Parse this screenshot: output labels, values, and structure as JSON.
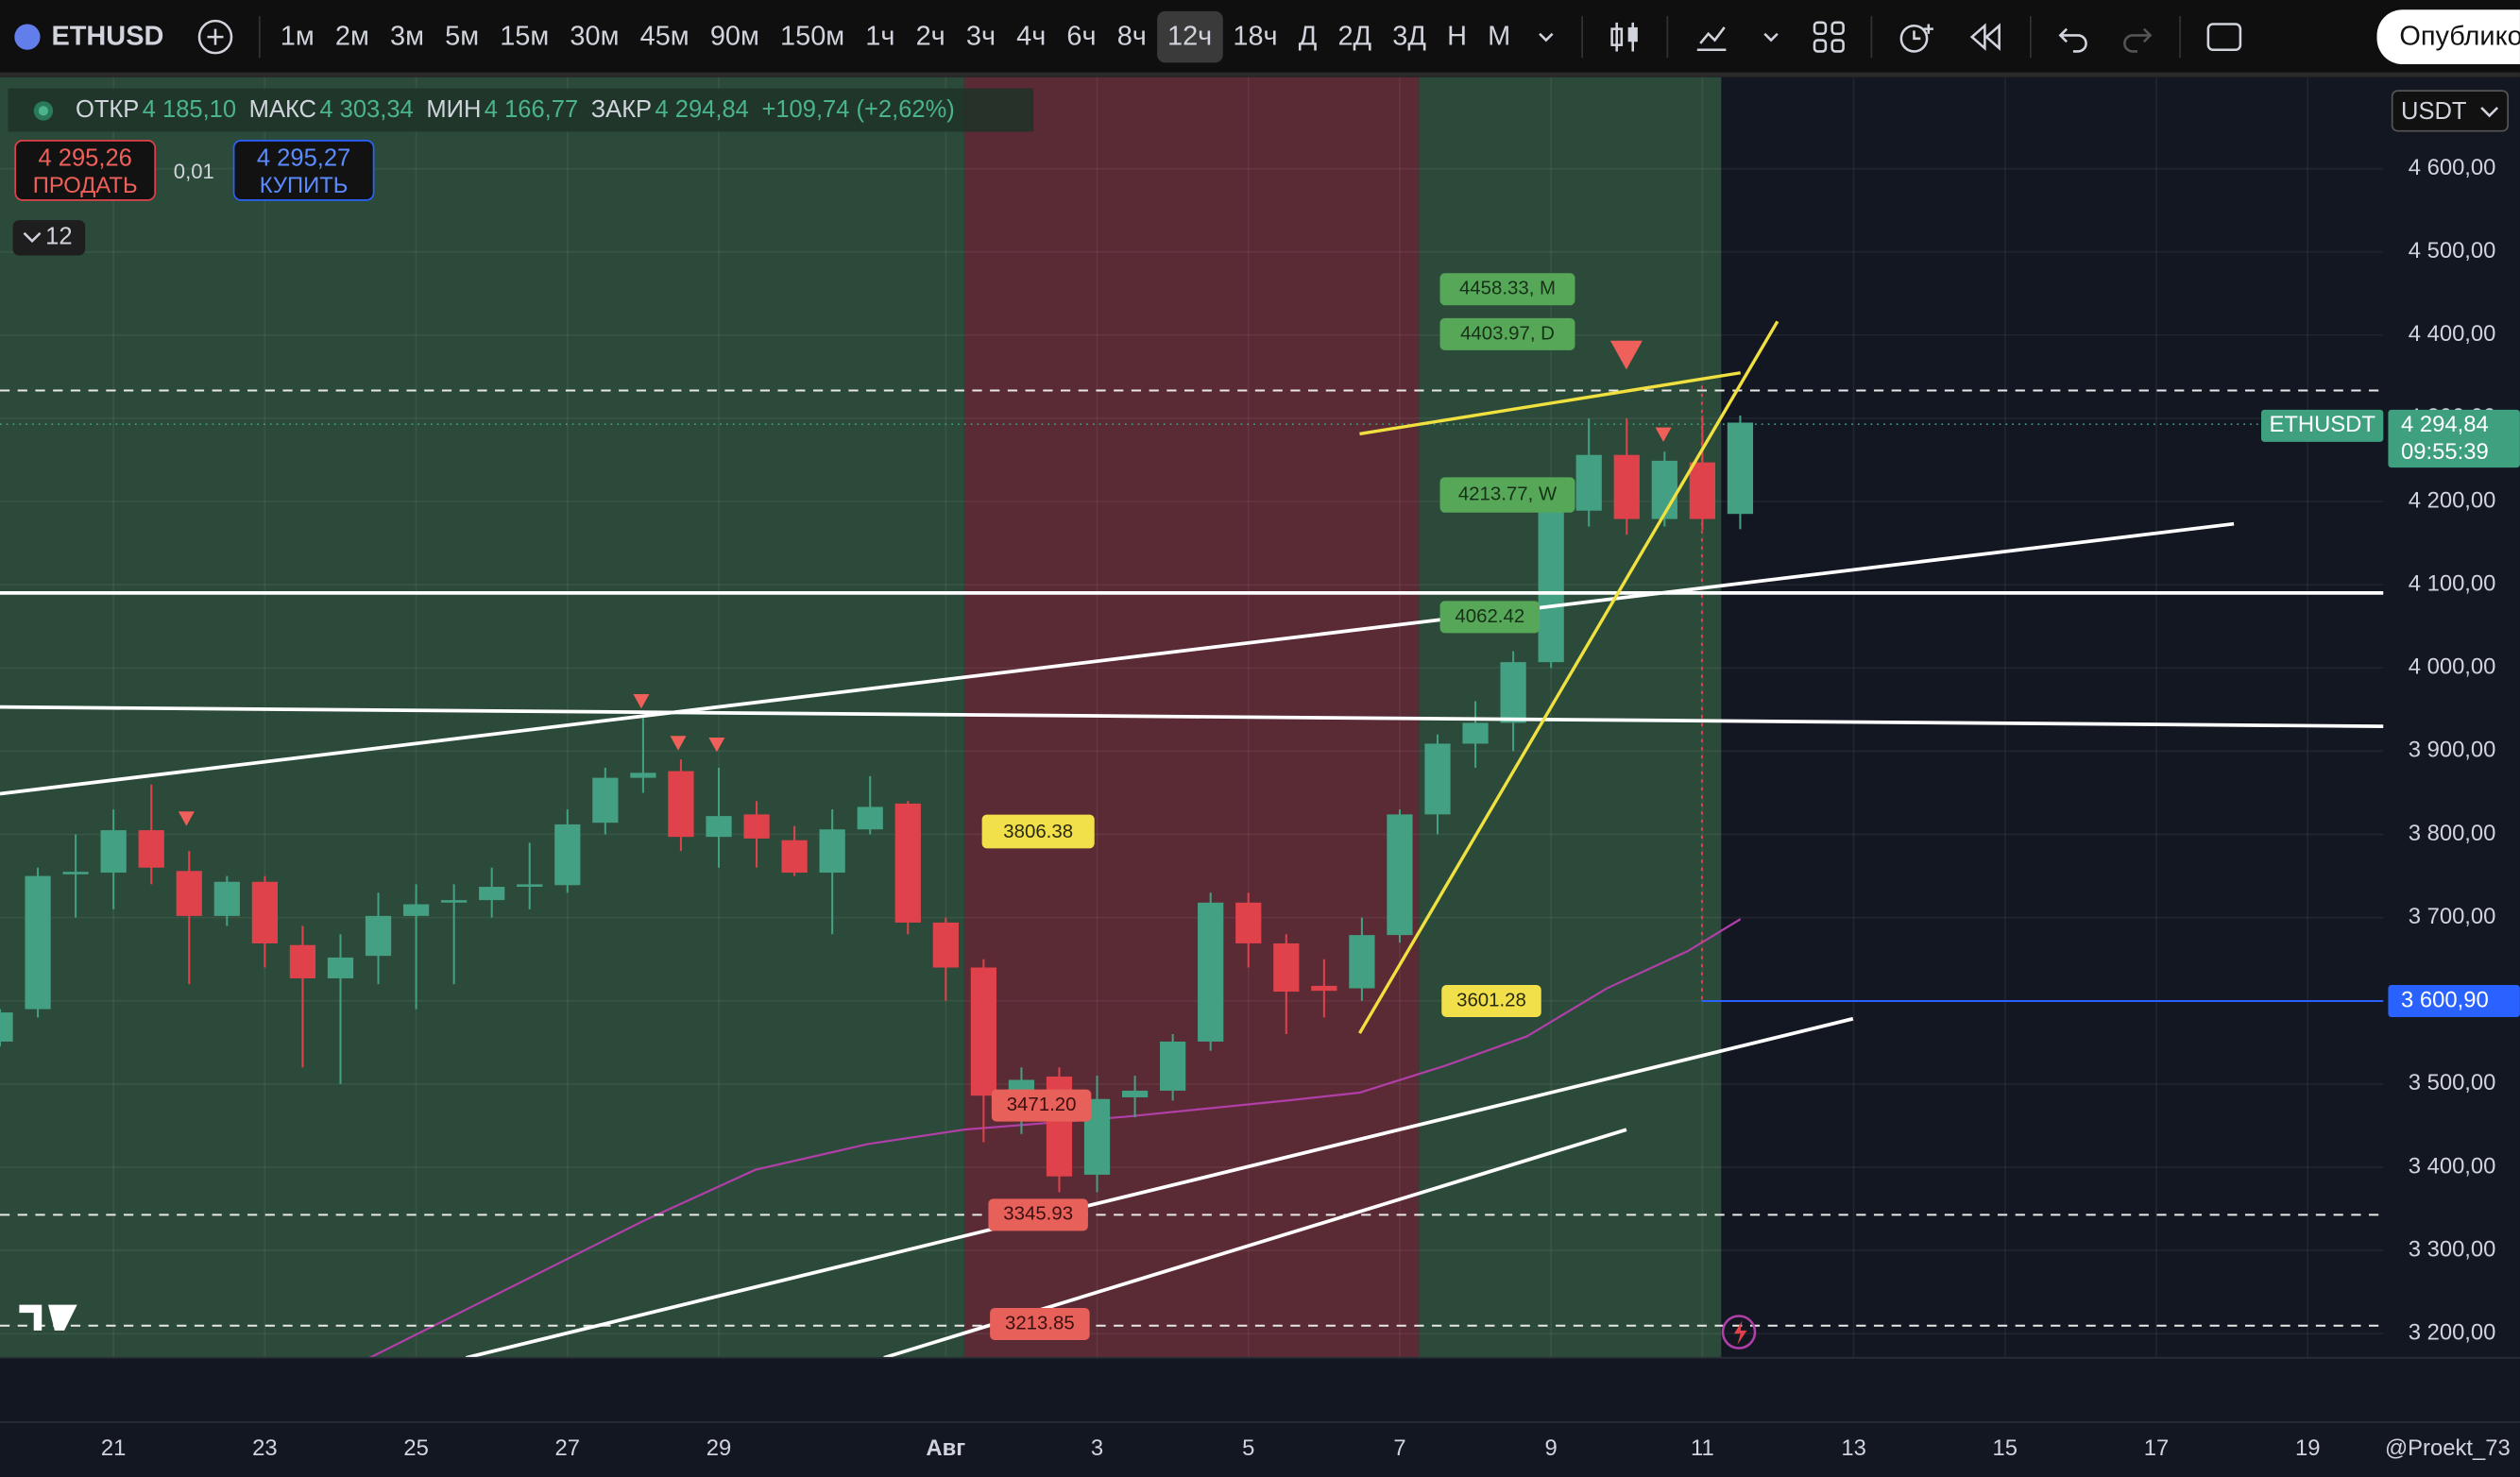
{
  "toolbar": {
    "symbol": "ETHUSD",
    "intervals": [
      "1м",
      "2м",
      "3м",
      "5м",
      "15м",
      "30м",
      "45м",
      "90м",
      "150м",
      "1ч",
      "2ч",
      "3ч",
      "4ч",
      "6ч",
      "8ч",
      "12ч",
      "18ч",
      "Д",
      "2Д",
      "3Д",
      "Н",
      "М"
    ],
    "active_interval": "12ч",
    "publish": "Опублико"
  },
  "legend": {
    "open_label": "ОТКР",
    "open": "4 185,10",
    "high_label": "МАКС",
    "high": "4 303,34",
    "low_label": "МИН",
    "low": "4 166,77",
    "close_label": "ЗАКР",
    "close": "4 294,84",
    "change": "+109,74 (+2,62%)"
  },
  "trade": {
    "sell_price": "4 295,26",
    "sell": "ПРОДАТЬ",
    "spread": "0,01",
    "buy_price": "4 295,27",
    "buy": "КУПИТЬ"
  },
  "indicators_count": "12",
  "currency": "USDT",
  "price_tags": {
    "symbol": "ETHUSDT",
    "last": "4 294,84",
    "countdown": "09:55:39",
    "level": "3 600,90"
  },
  "watermark": "@Proekt_73",
  "chart_data": {
    "type": "candlestick",
    "up_color": "#43a083",
    "down_color": "#e0424c",
    "grid": true,
    "categories": [
      null,
      null,
      null,
      null,
      null,
      null,
      null,
      null,
      null,
      null,
      null,
      null,
      null,
      null,
      null,
      null,
      null,
      null,
      null,
      null,
      null,
      null,
      null,
      null,
      null,
      null,
      null,
      null,
      null,
      null,
      null,
      null,
      null,
      null,
      null,
      null,
      null,
      null,
      null,
      null,
      null,
      null,
      null,
      null,
      null,
      null,
      null
    ],
    "open": [
      3551,
      3590,
      3752,
      3754,
      3805,
      3756,
      3702,
      3743,
      3667,
      3627,
      3654,
      3702,
      3718,
      3721,
      3737,
      3739,
      3814,
      3868,
      3876,
      3797,
      3824,
      3793,
      3754,
      3806,
      3837,
      3694,
      3640,
      3486,
      3509,
      3391,
      3484,
      3492,
      3551,
      3718,
      3669,
      3618,
      3615,
      3679,
      3824,
      3909,
      3934,
      4007,
      4189,
      4256,
      4179,
      4247,
      4185.1
    ],
    "high": [
      3590,
      3760,
      3800,
      3830,
      3860,
      3780,
      3750,
      3750,
      3690,
      3680,
      3730,
      3740,
      3740,
      3760,
      3790,
      3830,
      3880,
      3940,
      3890,
      3880,
      3840,
      3810,
      3830,
      3870,
      3840,
      3700,
      3650,
      3520,
      3520,
      3510,
      3510,
      3560,
      3730,
      3730,
      3680,
      3650,
      3700,
      3830,
      3920,
      3960,
      4020,
      4200,
      4300,
      4300,
      4260,
      4303,
      4303.34
    ],
    "low": [
      3545,
      3580,
      3700,
      3710,
      3740,
      3620,
      3690,
      3640,
      3520,
      3500,
      3620,
      3590,
      3620,
      3700,
      3710,
      3730,
      3800,
      3850,
      3780,
      3760,
      3760,
      3750,
      3680,
      3800,
      3680,
      3600,
      3430,
      3440,
      3370,
      3370,
      3460,
      3480,
      3540,
      3640,
      3560,
      3580,
      3600,
      3670,
      3800,
      3880,
      3900,
      4000,
      4170,
      4160,
      4170,
      4166,
      4166.77
    ],
    "close": [
      3586,
      3750,
      3755,
      3805,
      3760,
      3702,
      3743,
      3669,
      3627,
      3652,
      3702,
      3716,
      3721,
      3737,
      3740,
      3812,
      3868,
      3874,
      3797,
      3822,
      3795,
      3754,
      3806,
      3833,
      3694,
      3640,
      3486,
      3505,
      3389,
      3482,
      3492,
      3551,
      3718,
      3669,
      3611,
      3612,
      3679,
      3824,
      3909,
      3934,
      4007,
      4189,
      4256,
      4179,
      4249,
      4179,
      4294.84
    ],
    "xlim": [
      0,
      63
    ],
    "xticks": [
      {
        "value": 3,
        "label": "21"
      },
      {
        "value": 7,
        "label": "23"
      },
      {
        "value": 11,
        "label": "25"
      },
      {
        "value": 15,
        "label": "27"
      },
      {
        "value": 19,
        "label": "29"
      },
      {
        "value": 25,
        "label": "Авг"
      },
      {
        "value": 29,
        "label": "3"
      },
      {
        "value": 33,
        "label": "5"
      },
      {
        "value": 37,
        "label": "7"
      },
      {
        "value": 41,
        "label": "9"
      },
      {
        "value": 45,
        "label": "11"
      },
      {
        "value": 49,
        "label": "13"
      },
      {
        "value": 53,
        "label": "15"
      },
      {
        "value": 57,
        "label": "17"
      },
      {
        "value": 61,
        "label": "19"
      }
    ],
    "ylim": [
      3171,
      4710
    ],
    "yticks": [
      {
        "value": 3200,
        "label": "3 200,00"
      },
      {
        "value": 3300,
        "label": "3 300,00"
      },
      {
        "value": 3400,
        "label": "3 400,00"
      },
      {
        "value": 3500,
        "label": "3 500,00"
      },
      {
        "value": 3600,
        "label": "3 600,00"
      },
      {
        "value": 3700,
        "label": "3 700,00"
      },
      {
        "value": 3800,
        "label": "3 800,00"
      },
      {
        "value": 3900,
        "label": "3 900,00"
      },
      {
        "value": 4000,
        "label": "4 000,00"
      },
      {
        "value": 4100,
        "label": "4 100,00"
      },
      {
        "value": 4200,
        "label": "4 200,00"
      },
      {
        "value": 4300,
        "label": "4 300,00"
      },
      {
        "value": 4400,
        "label": "4 400,00"
      },
      {
        "value": 4500,
        "label": "4 500,00"
      },
      {
        "value": 4600,
        "label": "4 600,00"
      }
    ],
    "annotations": [
      "4458.33, M",
      "4403.97, D",
      "4213.77, W",
      "4062.42",
      "3806.38",
      "3601.28",
      "3471.20",
      "3345.93",
      "3213.85"
    ]
  }
}
